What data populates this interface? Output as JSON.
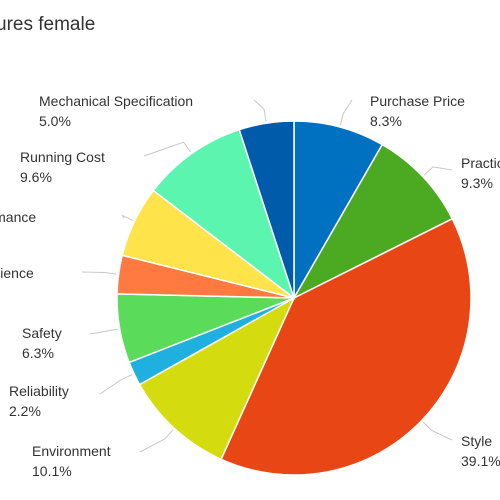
{
  "chart_data": {
    "type": "pie",
    "title": "ures female",
    "legend": "none",
    "slices": [
      {
        "label": "Purchase Price",
        "percent_label": "8.3%",
        "value": 8.3,
        "color": "#0070c0"
      },
      {
        "label": "Practicality",
        "percent_label": "9.3%",
        "value": 9.3,
        "color": "#4caa22"
      },
      {
        "label": "Style",
        "percent_label": "39.1%",
        "value": 39.1,
        "color": "#e84614"
      },
      {
        "label": "Environment",
        "percent_label": "10.1%",
        "value": 10.1,
        "color": "#d4dc10"
      },
      {
        "label": "Reliability",
        "percent_label": "2.2%",
        "value": 2.2,
        "color": "#20b0e0"
      },
      {
        "label": "Safety",
        "percent_label": "6.3%",
        "value": 6.3,
        "color": "#5adc5a"
      },
      {
        "label": "Convenience",
        "percent_label": "3.5%",
        "value": 3.5,
        "color": "#ff7a40"
      },
      {
        "label": "Performance",
        "percent_label": "6.5%",
        "value": 6.5,
        "color": "#ffe34a"
      },
      {
        "label": "Running Cost",
        "percent_label": "9.6%",
        "value": 9.6,
        "color": "#5cf5b0"
      },
      {
        "label": "Mechanical Specification",
        "percent_label": "5.0%",
        "value": 5.0,
        "color": "#005caa"
      }
    ]
  }
}
